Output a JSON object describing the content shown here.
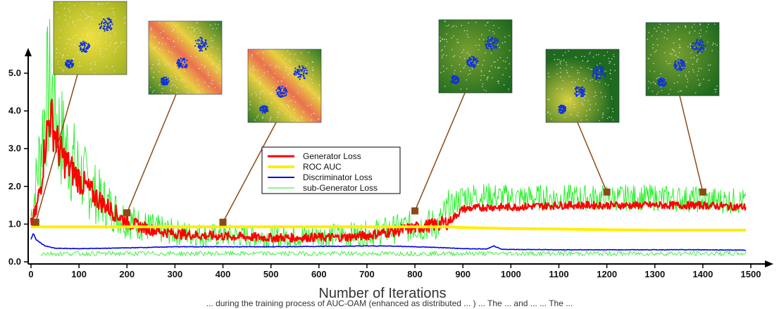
{
  "chart_data": {
    "type": "line",
    "title": "",
    "xlabel": "Number of Iterations",
    "ylabel": "",
    "xlim": [
      0,
      1500
    ],
    "ylim": [
      0,
      5.5
    ],
    "x_ticks": [
      0,
      100,
      200,
      300,
      400,
      500,
      600,
      700,
      800,
      900,
      1000,
      1100,
      1200,
      1300,
      1400,
      1500
    ],
    "y_ticks": [
      0.0,
      1.0,
      2.0,
      3.0,
      4.0,
      5.0
    ],
    "x_tick_labels": [
      "0",
      "100",
      "200",
      "300",
      "400",
      "500",
      "600",
      "700",
      "800",
      "900",
      "1000",
      "1100",
      "1200",
      "1300",
      "1400",
      "1500"
    ],
    "y_tick_labels": [
      "0.0",
      "1.0",
      "2.0",
      "3.0",
      "4.0",
      "5.0"
    ],
    "grid": false,
    "legend_position": "center",
    "series": [
      {
        "name": "Generator Loss",
        "color": "#ff0000",
        "x": [
          0,
          10,
          20,
          30,
          40,
          50,
          60,
          80,
          100,
          120,
          150,
          200,
          250,
          300,
          350,
          400,
          450,
          500,
          550,
          600,
          650,
          700,
          750,
          800,
          850,
          870,
          900,
          950,
          1000,
          1100,
          1200,
          1300,
          1400,
          1490
        ],
        "y": [
          1.0,
          1.3,
          2.0,
          3.2,
          3.9,
          3.4,
          2.9,
          2.5,
          2.2,
          1.9,
          1.55,
          1.05,
          0.85,
          0.75,
          0.7,
          0.68,
          0.66,
          0.64,
          0.64,
          0.65,
          0.65,
          0.7,
          0.8,
          0.9,
          1.0,
          1.05,
          1.4,
          1.45,
          1.45,
          1.5,
          1.5,
          1.5,
          1.5,
          1.45
        ]
      },
      {
        "name": "ROC AUC",
        "color": "#ffee00",
        "x": [
          0,
          100,
          200,
          300,
          400,
          500,
          600,
          700,
          800,
          850,
          870,
          900,
          1000,
          1100,
          1200,
          1300,
          1400,
          1490
        ],
        "y": [
          0.93,
          0.93,
          0.93,
          0.93,
          0.93,
          0.93,
          0.93,
          0.93,
          0.93,
          0.93,
          0.93,
          0.91,
          0.88,
          0.87,
          0.85,
          0.84,
          0.84,
          0.84
        ]
      },
      {
        "name": "Discriminator Loss",
        "color": "#0000ee",
        "x": [
          0,
          5,
          10,
          20,
          30,
          50,
          100,
          200,
          300,
          400,
          500,
          600,
          700,
          750,
          800,
          850,
          900,
          950,
          965,
          980,
          1000,
          1100,
          1200,
          1300,
          1400,
          1490
        ],
        "y": [
          0.6,
          0.75,
          0.6,
          0.5,
          0.42,
          0.36,
          0.35,
          0.37,
          0.4,
          0.4,
          0.4,
          0.41,
          0.42,
          0.42,
          0.4,
          0.38,
          0.35,
          0.34,
          0.42,
          0.33,
          0.33,
          0.32,
          0.32,
          0.32,
          0.32,
          0.31
        ]
      },
      {
        "name": "sub-Generator Loss",
        "color": "#22ee22",
        "x": [
          0,
          10,
          20,
          30,
          40,
          50,
          60,
          80,
          100,
          120,
          150,
          200,
          250,
          300,
          350,
          400,
          450,
          500,
          550,
          600,
          650,
          700,
          750,
          800,
          850,
          880,
          900,
          950,
          1000,
          1100,
          1200,
          1300,
          1400,
          1490
        ],
        "y": [
          1.2,
          2.0,
          3.0,
          4.2,
          4.6,
          4.0,
          3.4,
          2.8,
          2.4,
          2.0,
          1.6,
          1.1,
          0.9,
          0.78,
          0.72,
          0.7,
          0.68,
          0.67,
          0.68,
          0.7,
          0.72,
          0.75,
          0.85,
          0.95,
          1.0,
          1.5,
          1.75,
          1.75,
          1.7,
          1.7,
          1.7,
          1.7,
          1.65,
          1.6
        ]
      }
    ],
    "annotations": [
      {
        "x": 10,
        "y": 1.05
      },
      {
        "x": 200,
        "y": 1.3
      },
      {
        "x": 400,
        "y": 1.05
      },
      {
        "x": 800,
        "y": 1.35
      },
      {
        "x": 1200,
        "y": 1.85
      },
      {
        "x": 1400,
        "y": 1.85
      }
    ]
  },
  "caption": "... during the training process of AUC-OAM (enhanced as distributed ... ) ... The ... and ... ... The ..."
}
